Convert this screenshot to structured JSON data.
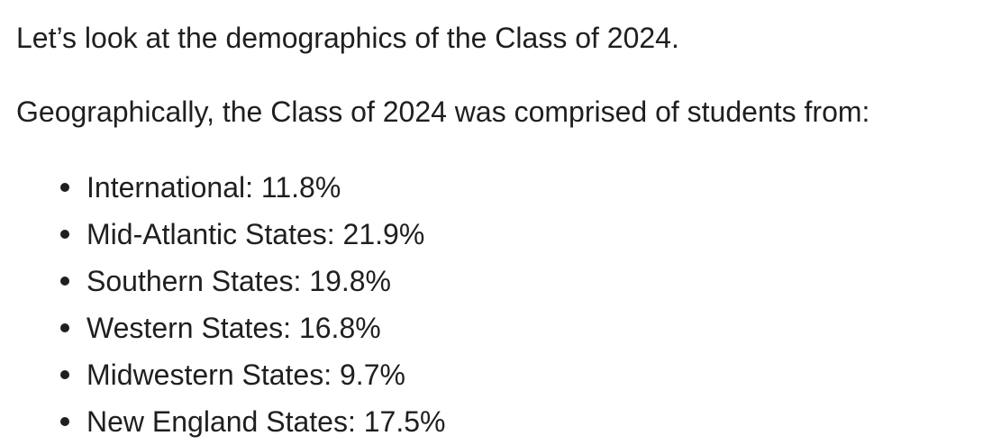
{
  "paragraphs": [
    "Let’s look at the demographics of the Class of 2024.",
    "Geographically, the Class of 2024 was comprised of students from:"
  ],
  "list": [
    "International: 11.8%",
    "Mid-Atlantic States: 21.9%",
    "Southern States: 19.8%",
    "Western States: 16.8%",
    "Midwestern States: 9.7%",
    "New England States: 17.5%"
  ]
}
